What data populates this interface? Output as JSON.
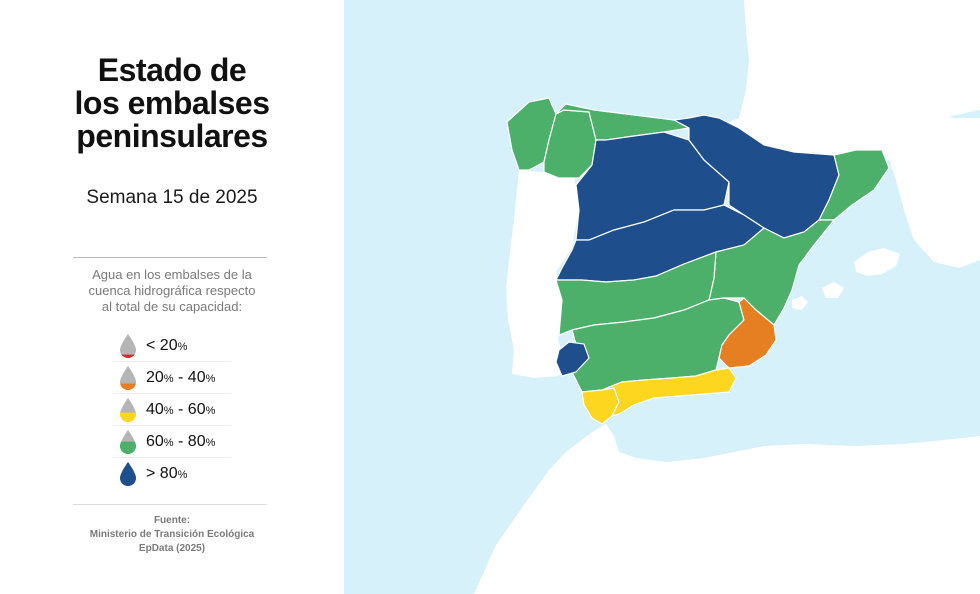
{
  "title_lines": [
    "Estado de",
    "los embalses",
    "peninsulares"
  ],
  "subtitle": "Semana 15 de 2025",
  "legend": {
    "description_lines": [
      "Agua en los embalses de la",
      "cuenca hidrográfica respecto",
      "al total de su capacidad:"
    ],
    "items": [
      {
        "prefix": "< 20",
        "mid": "",
        "mid_suffix": "",
        "end": "",
        "end_suffix": "%",
        "fill_fraction": 0.2,
        "color": "#d42d2d"
      },
      {
        "prefix": "20",
        "mid": "%",
        "mid_suffix": " - ",
        "end": "40",
        "end_suffix": "%",
        "fill_fraction": 0.4,
        "color": "#e67e22"
      },
      {
        "prefix": "40",
        "mid": "%",
        "mid_suffix": " - ",
        "end": "60",
        "end_suffix": "%",
        "fill_fraction": 0.6,
        "color": "#fdd61f"
      },
      {
        "prefix": "60",
        "mid": "%",
        "mid_suffix": " - ",
        "end": "80",
        "end_suffix": "%",
        "fill_fraction": 0.8,
        "color": "#4caf6a"
      },
      {
        "prefix": "> 80",
        "mid": "",
        "mid_suffix": "",
        "end": "",
        "end_suffix": "%",
        "fill_fraction": 1.0,
        "color": "#1f4e8c"
      }
    ],
    "empty_color": "#b5b5b5"
  },
  "source_lines": [
    "Fuente:",
    "Ministerio de Transición Ecológica",
    "EpData (2025)"
  ],
  "map_colors": {
    "sea": "#d6f1fa",
    "land": "#ffffff",
    "border": "#ffffff",
    "gt80": "#1f4e8c",
    "60to80": "#4caf6a",
    "40to60": "#fdd61f",
    "20to40": "#e67e22"
  },
  "basins": [
    {
      "name": "Galicia Costa",
      "category": "60to80"
    },
    {
      "name": "Miño-Sil",
      "category": "60to80"
    },
    {
      "name": "Cantábrico",
      "category": "60to80"
    },
    {
      "name": "Duero",
      "category": "gt80"
    },
    {
      "name": "Ebro",
      "category": "gt80"
    },
    {
      "name": "Tajo",
      "category": "gt80"
    },
    {
      "name": "Cataluña Interior",
      "category": "60to80"
    },
    {
      "name": "Júcar",
      "category": "60to80"
    },
    {
      "name": "Guadiana",
      "category": "60to80"
    },
    {
      "name": "Guadalquivir",
      "category": "60to80"
    },
    {
      "name": "Segura",
      "category": "20to40"
    },
    {
      "name": "Tinto, Odiel y Piedras",
      "category": "gt80"
    },
    {
      "name": "Guadalete-Barbate",
      "category": "40to60"
    },
    {
      "name": "Cuencas Mediterráneas Andaluzas",
      "category": "40to60"
    }
  ]
}
